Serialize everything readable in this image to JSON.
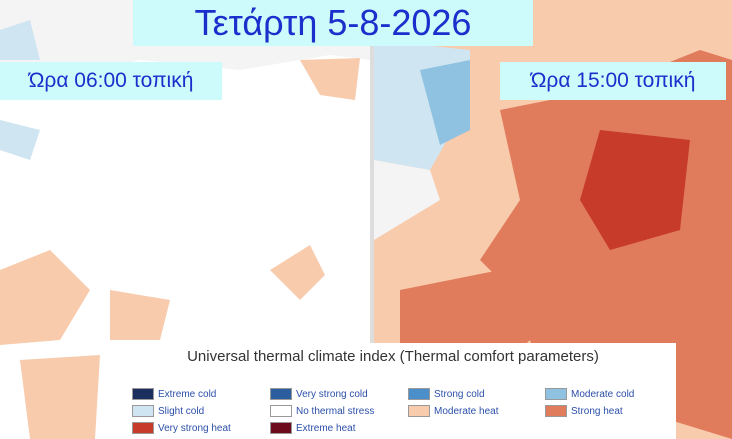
{
  "header": {
    "title": "Τετάρτη 5-8-2026"
  },
  "panels": [
    {
      "label": "Ώρα 06:00 τοπική"
    },
    {
      "label": "Ώρα 15:00 τοπική"
    }
  ],
  "legend": {
    "title": "Universal thermal climate index (Thermal comfort parameters)",
    "items": [
      {
        "label": "Extreme cold",
        "color": "#1b2f5f"
      },
      {
        "label": "Very strong cold",
        "color": "#2c5d9e"
      },
      {
        "label": "Strong cold",
        "color": "#4b8fca"
      },
      {
        "label": "Moderate cold",
        "color": "#8fc1e1"
      },
      {
        "label": "Slight cold",
        "color": "#cfe5f1"
      },
      {
        "label": "No thermal stress",
        "color": "#ffffff"
      },
      {
        "label": "Moderate heat",
        "color": "#f8cbad"
      },
      {
        "label": "Strong heat",
        "color": "#e07b5b"
      },
      {
        "label": "Very strong heat",
        "color": "#c73b2b"
      },
      {
        "label": "Extreme heat",
        "color": "#6b0b1c"
      }
    ]
  }
}
